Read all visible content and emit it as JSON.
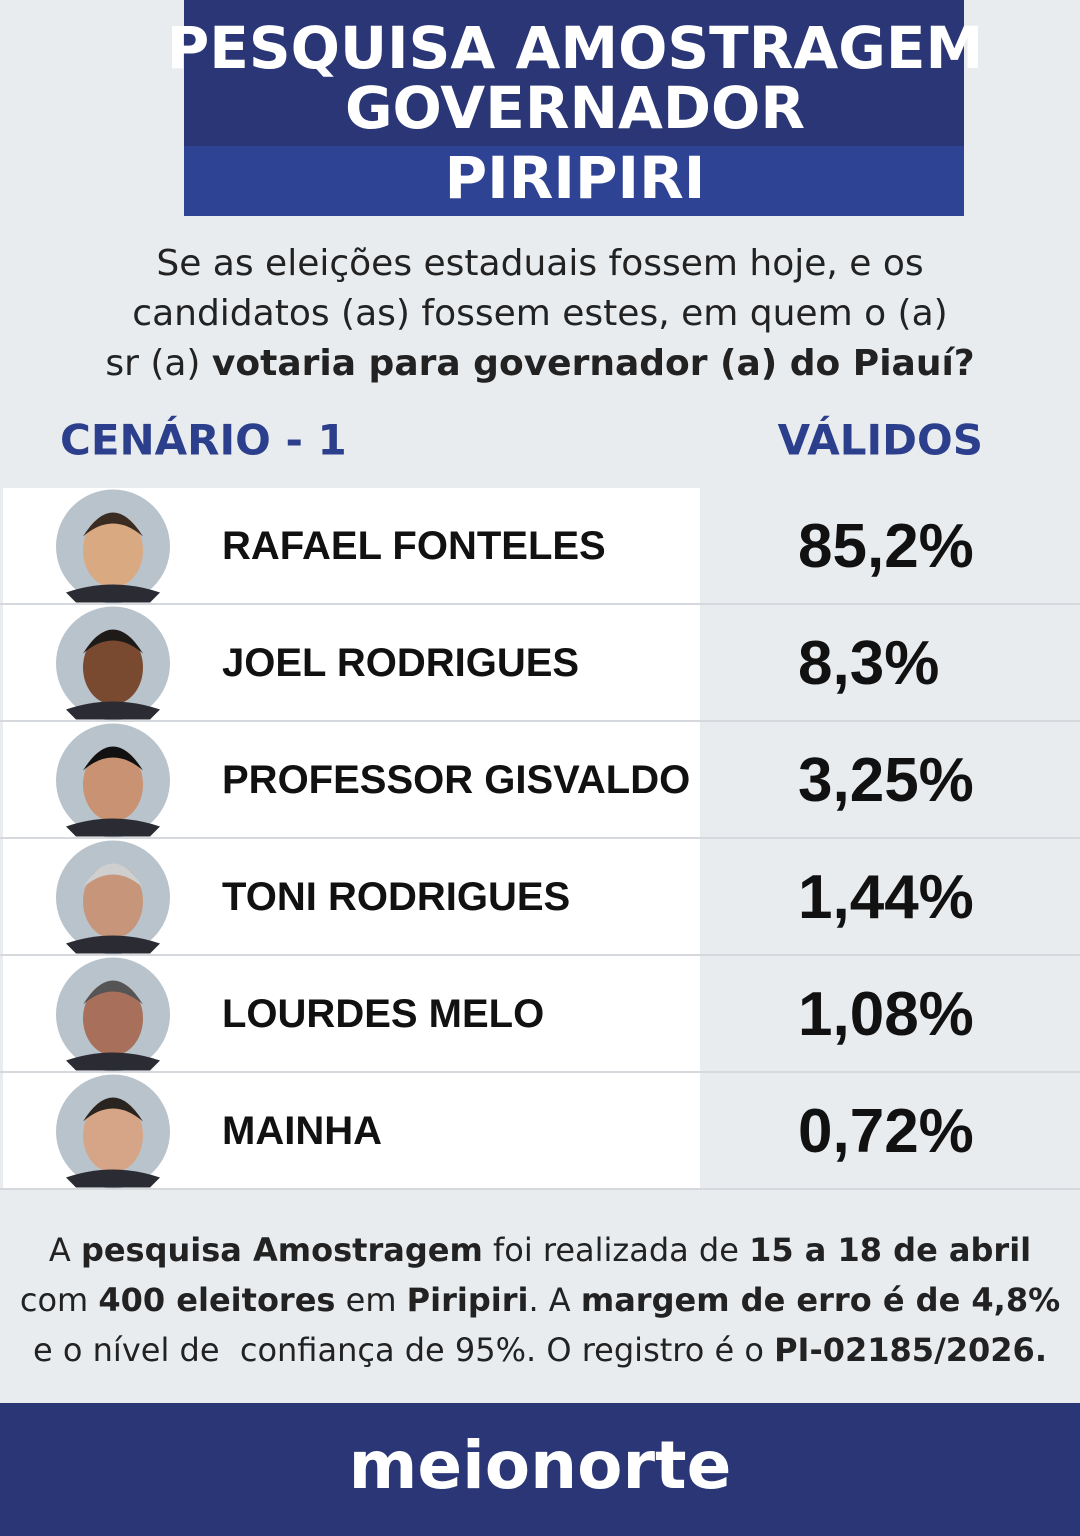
{
  "header": {
    "title_lines": [
      "PESQUISA AMOSTRAGEM",
      "GOVERNADOR"
    ],
    "city": "PIRIPIRI"
  },
  "question": {
    "lines": [
      [
        {
          "text": "Se as eleições estaduais fossem hoje, e os",
          "bold": false
        }
      ],
      [
        {
          "text": "candidatos (as) fossem estes, em quem o (a)",
          "bold": false
        }
      ],
      [
        {
          "text": "sr (a) ",
          "bold": false
        },
        {
          "text": "votaria para governador (a) do Piauí?",
          "bold": true
        }
      ]
    ]
  },
  "table": {
    "headers": [
      "CENÁRIO - 1",
      "VÁLIDOS"
    ],
    "rows": [
      [
        "RAFAEL FONTELES",
        "85,2%"
      ],
      [
        "JOEL RODRIGUES",
        "8,3%"
      ],
      [
        "PROFESSOR GISVALDO",
        "3,25%"
      ],
      [
        "TONI RODRIGUES",
        "1,44%"
      ],
      [
        "LOURDES MELO",
        "1,08%"
      ],
      [
        "MAINHA",
        "0,72%"
      ]
    ]
  },
  "footer": {
    "lines": [
      [
        {
          "text": "A ",
          "bold": false
        },
        {
          "text": "pesquisa Amostragem",
          "bold": true
        },
        {
          "text": " foi realizada de ",
          "bold": false
        },
        {
          "text": "15 a 18 de abril",
          "bold": true
        }
      ],
      [
        {
          "text": "com ",
          "bold": false
        },
        {
          "text": "400 eleitores",
          "bold": true
        },
        {
          "text": " em ",
          "bold": false
        },
        {
          "text": "Piripiri",
          "bold": true
        },
        {
          "text": ". A ",
          "bold": false
        },
        {
          "text": "margem de erro é de 4,8%",
          "bold": true
        }
      ],
      [
        {
          "text": "e o nível de  confiança de 95%. O registro é o ",
          "bold": false
        },
        {
          "text": "PI-02185/2026.",
          "bold": true
        }
      ]
    ]
  },
  "brand": "meionorte"
}
